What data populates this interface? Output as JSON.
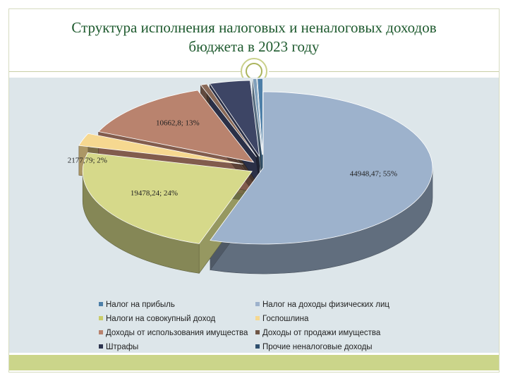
{
  "title": "Структура исполнения налоговых и неналоговых доходов бюджета в 2023 году",
  "title_lines": [
    "Структура исполнения налоговых и неналоговых доходов",
    "бюджета в 2023 году"
  ],
  "chart_data": {
    "type": "pie",
    "title": "Структура исполнения налоговых и неналоговых доходов бюджета в 2023 году",
    "style": "3d-exploded",
    "legend_position": "bottom",
    "slices": [
      {
        "name": "Налог на доходы физических лиц",
        "value": 44948.47,
        "percent": 55,
        "label": "44948,47; 55%",
        "color": "#9db2cc"
      },
      {
        "name": "Налоги на совокупный доход",
        "value": 19478.24,
        "percent": 24,
        "label": "19478,24; 24%",
        "color": "#d6d98a"
      },
      {
        "name": "Госпошлина",
        "value": 2177.79,
        "percent": 2,
        "label": "2177,79; 2%",
        "color": "#f6d890"
      },
      {
        "name": "Доходы от использования имущества",
        "value": 10662.8,
        "percent": 13,
        "label": "10662,8; 13%",
        "color": "#b9836e"
      },
      {
        "name": "Доходы от продажи имущества",
        "value": 500,
        "percent": 1,
        "label": "",
        "color": "#8a6a58"
      },
      {
        "name": "Штрафы",
        "value": 3150,
        "percent": 4,
        "label": "",
        "color": "#3d4565"
      },
      {
        "name": "Прочие неналоговые доходы",
        "value": 300,
        "percent": 0,
        "label": "",
        "color": "#7f9fba"
      },
      {
        "name": "Налог на прибыль",
        "value": 420,
        "percent": 1,
        "label": "",
        "color": "#4d7fa8"
      }
    ]
  },
  "legend": [
    {
      "label": "Налог на прибыль",
      "color": "#4d7fa8"
    },
    {
      "label": "Налог на доходы физических лиц",
      "color": "#9db2cc"
    },
    {
      "label": "Налоги на совокупный доход",
      "color": "#c9cc6a"
    },
    {
      "label": "Госпошлина",
      "color": "#f6d890"
    },
    {
      "label": "Доходы от использования имущества",
      "color": "#b9836e"
    },
    {
      "label": "Доходы от продажи имущества",
      "color": "#6f5646"
    },
    {
      "label": "Штрафы",
      "color": "#2e3550"
    },
    {
      "label": "Прочие неналоговые доходы",
      "color": "#2f4f6e"
    }
  ]
}
